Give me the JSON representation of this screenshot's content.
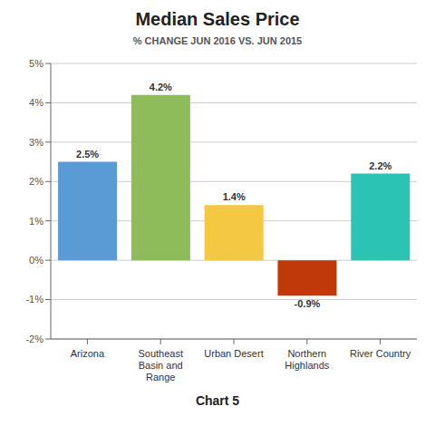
{
  "chart_data": {
    "type": "bar",
    "title": "Median Sales Price",
    "subtitle": "% CHANGE JUN 2016 VS. JUN 2015",
    "xlabel": "Chart 5",
    "categories": [
      "Arizona",
      "Southeast\nBasin and\nRange",
      "Urban Desert",
      "Northern\nHighlands",
      "River Country"
    ],
    "values": [
      2.5,
      4.2,
      1.4,
      -0.9,
      2.2
    ],
    "value_labels": [
      "2.5%",
      "4.2%",
      "1.4%",
      "-0.9%",
      "2.2%"
    ],
    "data_labels": true,
    "colors": [
      "#5B9BD5",
      "#8FBC5A",
      "#F4C842",
      "#C0390B",
      "#2BC4B4"
    ],
    "ylim": [
      -2,
      5
    ],
    "yticks": [
      {
        "value": -2,
        "label": "-2%"
      },
      {
        "value": -1,
        "label": "-1%"
      },
      {
        "value": 0,
        "label": "0%"
      },
      {
        "value": 1,
        "label": "1%"
      },
      {
        "value": 2,
        "label": "2%"
      },
      {
        "value": 3,
        "label": "3%"
      },
      {
        "value": 4,
        "label": "4%"
      },
      {
        "value": 5,
        "label": "5%"
      }
    ],
    "grid": true
  }
}
